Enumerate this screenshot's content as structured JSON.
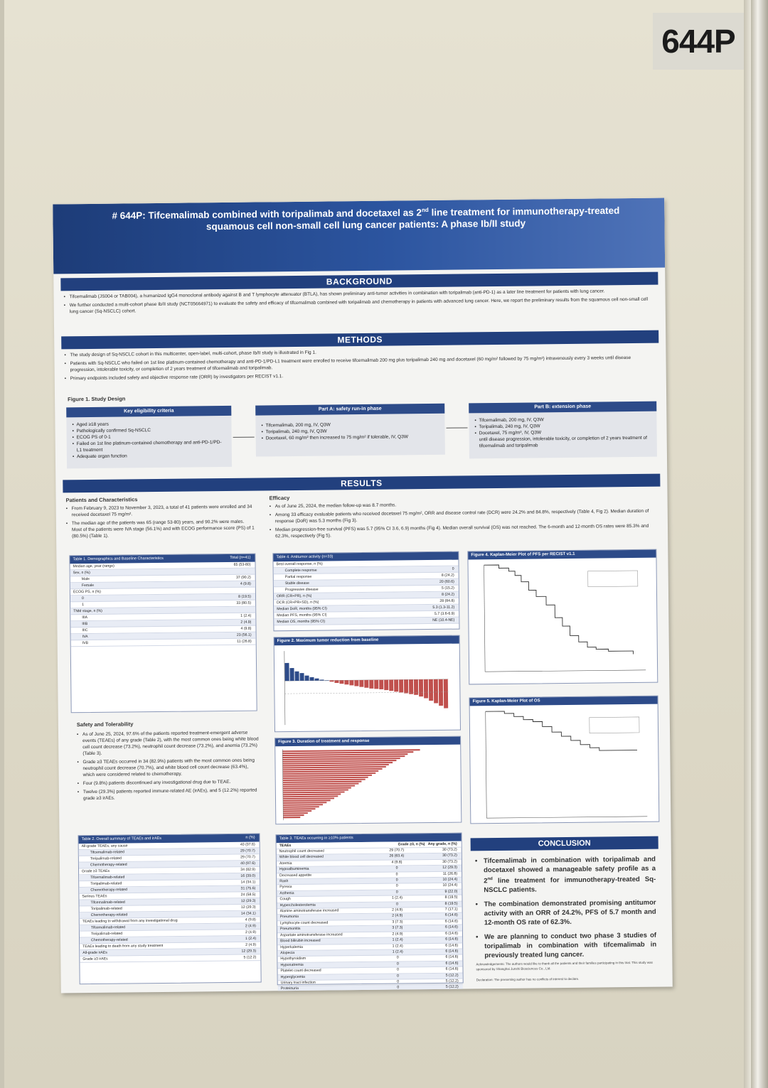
{
  "poster_number": "644P",
  "header": {
    "title_line1": "# 644P: Tifcemalimab combined with toripalimab and docetaxel as 2",
    "title_sup": "nd",
    "title_line1_tail": " line treatment for immunotherapy-treated",
    "title_line2": "squamous cell non-small cell lung cancer patients: A phase Ib/II study",
    "authors": "",
    "affiliations": ""
  },
  "background": {
    "heading": "BACKGROUND",
    "bullets": [
      "Tifcemalimab (JS004 or TAB004), a humanized IgG4 monoclonal antibody against B and T lymphocyte attenuator (BTLA), has shown preliminary anti-tumor activities in combination with toripalimab (anti-PD-1) as a later line treatment for patients with lung cancer.",
      "We further conducted a multi-cohort phase Ib/II study (NCT05664971) to evaluate the safety and efficacy of tifcemalimab combined with toripalimab and chemotherapy in patients with advanced lung cancer. Here, we report the preliminary results from the squamous cell non-small cell lung cancer (Sq-NSCLC) cohort."
    ]
  },
  "methods": {
    "heading": "METHODS",
    "bullets": [
      "The study design of Sq-NSCLC cohort in this multicenter, open-label, multi-cohort, phase Ib/II study is illustrated in Fig 1.",
      "Patients with Sq-NSCLC who failed on 1st line platinum-contained chemotherapy and anti-PD-1/PD-L1 treatment were enrolled to receive tifcemalimab 200 mg plus toripalimab 240 mg and docetaxel (60 mg/m² followed by 75 mg/m²) intravenously every 3 weeks until disease progression, intolerable toxicity, or completion of 2 years treatment of tifcemalimab and toripalimab.",
      "Primary endpoints included safety and objective response rate (ORR) by investigators per RECIST v1.1."
    ],
    "figure_caption": "Figure 1. Study Design",
    "design": {
      "box1_title": "Key eligibility criteria",
      "box1_items": [
        "Aged ≥18 years",
        "Pathologically confirmed Sq-NSCLC",
        "ECOG PS of 0-1",
        "Failed on 1st line platinum-contained chemotherapy and anti-PD-1/PD-L1 treatment",
        "Adequate organ function"
      ],
      "box2_title": "Part A: safety run-in phase",
      "box2_items": [
        "Tifcemalimab, 200 mg, IV, Q3W",
        "Toripalimab, 240 mg, IV, Q3W",
        "Docetaxel, 60 mg/m² then increased to 75 mg/m² if tolerable, IV, Q3W"
      ],
      "box3_title": "Part B: extension phase",
      "box3_items": [
        "Tifcemalimab, 200 mg, IV, Q3W",
        "Toripalimab, 240 mg, IV, Q3W",
        "Docetaxel, 75 mg/m², IV, Q3W"
      ],
      "box3_note": "until disease progression, intolerable toxicity, or completion of 2 years treatment of tifcemalimab and toripalimab"
    }
  },
  "results": {
    "heading": "RESULTS",
    "patients_heading": "Patients and Characteristics",
    "patients_bullets": [
      "From February 9, 2023 to November 3, 2023, a total of 41 patients were enrolled and 34 received docetaxel 75 mg/m².",
      "The median age of the patients was 65 (range 53-80) years, and 90.2% were males. Most of the patients were IVA stage (56.1%) and with ECOG performance score (PS) of 1 (80.5%) (Table 1)."
    ],
    "efficacy_heading": "Efficacy",
    "efficacy_bullets": [
      "As of June 25, 2024, the median follow-up was 8.7 months.",
      "Among 33 efficacy evaluable patients who received docetaxel 75 mg/m², ORR and disease control rate (DCR) were 24.2% and 84.8%, respectively (Table 4, Fig 2). Median duration of response (DoR) was 5.3 months (Fig 3).",
      "Median progression-free survival (PFS) was 5.7 (95% CI 3.6, 6.9) months (Fig 4). Median overall survival (OS) was not reached. The 6-month and 12-month OS rates were 85.3% and 62.3%, respectively (Fig 5)."
    ],
    "table1": {
      "title": "Table 1. Demographics and Baseline Characteristics",
      "col": "Total (n=41)",
      "rows": [
        {
          "label": "Median age, year (range)",
          "value": "65 (53-80)",
          "indent": false
        },
        {
          "label": "Sex, n (%)",
          "value": "",
          "indent": false
        },
        {
          "label": "Male",
          "value": "37 (90.2)",
          "indent": true
        },
        {
          "label": "Female",
          "value": "4 (9.8)",
          "indent": true
        },
        {
          "label": "ECOG PS, n (%)",
          "value": "",
          "indent": false
        },
        {
          "label": "0",
          "value": "8 (19.5)",
          "indent": true
        },
        {
          "label": "1",
          "value": "33 (80.5)",
          "indent": true
        },
        {
          "label": "TNM stage, n (%)",
          "value": "",
          "indent": false
        },
        {
          "label": "IIIA",
          "value": "1 (2.4)",
          "indent": true
        },
        {
          "label": "IIIB",
          "value": "2 (4.9)",
          "indent": true
        },
        {
          "label": "IIIC",
          "value": "4 (9.8)",
          "indent": true
        },
        {
          "label": "IVA",
          "value": "23 (56.1)",
          "indent": true
        },
        {
          "label": "IVB",
          "value": "11 (26.8)",
          "indent": true
        }
      ]
    },
    "table4": {
      "title": "Table 4. Antitumor activity (n=33)",
      "rows": [
        {
          "label": "Best overall response, n (%)",
          "value": "",
          "indent": false
        },
        {
          "label": "Complete response",
          "value": "0",
          "indent": true
        },
        {
          "label": "Partial response",
          "value": "8 (24.2)",
          "indent": true
        },
        {
          "label": "Stable disease",
          "value": "20 (60.6)",
          "indent": true
        },
        {
          "label": "Progressive disease",
          "value": "5 (15.2)",
          "indent": true
        },
        {
          "label": "ORR (CR+PR), n (%)",
          "value": "8 (24.2)",
          "indent": false
        },
        {
          "label": "DCR (CR+PR+SD), n (%)",
          "value": "28 (84.8)",
          "indent": false
        },
        {
          "label": "Median DoR, months (95% CI)",
          "value": "5.3 (1.3-11.2)",
          "indent": false
        },
        {
          "label": "Median PFS, months (95% CI)",
          "value": "5.7 (3.6-6.9)",
          "indent": false
        },
        {
          "label": "Median OS, months (95% CI)",
          "value": "NE (10.4-NE)",
          "indent": false
        }
      ]
    },
    "fig2_title": "Figure 2. Maximum tumor reduction from baseline",
    "fig3_title": "Figure 3. Duration of treatment and response",
    "fig4_title": "Figure 4. Kaplan-Meier Plot of PFS per RECIST v1.1",
    "fig5_title": "Figure 5. Kaplan-Meier Plot of OS",
    "safety_heading": "Safety and Tolerability",
    "safety_bullets": [
      "As of June 25, 2024, 97.6% of the patients reported treatment-emergent adverse events (TEAEs) of any grade (Table 2), with the most common ones being white blood cell count decrease (73.2%), neutrophil count decrease (73.2%), and anemia (73.2%) (Table 3).",
      "Grade ≥3 TEAEs occurred in 34 (82.9%) patients with the most common ones being neutrophil count decrease (70.7%), and white blood cell count decrease (63.4%), which were considered related to chemotherapy.",
      "Four (9.8%) patients discontinued any investigational drug due to TEAE.",
      "Twelve (29.3%) patients reported immune-related AE (irAEs), and 5 (12.2%) reported grade ≥3 irAEs."
    ],
    "table2": {
      "title": "Table 2. Overall summary of TEAEs and irAEs",
      "col": "n (%)",
      "rows": [
        {
          "label": "All-grade TEAEs, any cause",
          "value": "40 (97.6)",
          "indent": false
        },
        {
          "label": "Tifcemalimab-related",
          "value": "29 (70.7)",
          "indent": true
        },
        {
          "label": "Toripalimab-related",
          "value": "29 (70.7)",
          "indent": true
        },
        {
          "label": "Chemotherapy-related",
          "value": "40 (97.6)",
          "indent": true
        },
        {
          "label": "Grade ≥3 TEAEs",
          "value": "34 (82.9)",
          "indent": false
        },
        {
          "label": "Tifcemalimab-related",
          "value": "16 (39.0)",
          "indent": true
        },
        {
          "label": "Toripalimab-related",
          "value": "14 (34.1)",
          "indent": true
        },
        {
          "label": "Chemotherapy-related",
          "value": "31 (75.6)",
          "indent": true
        },
        {
          "label": "Serious TEAEs",
          "value": "24 (58.5)",
          "indent": false
        },
        {
          "label": "Tifcemalimab-related",
          "value": "12 (29.3)",
          "indent": true
        },
        {
          "label": "Toripalimab-related",
          "value": "12 (29.3)",
          "indent": true
        },
        {
          "label": "Chemotherapy-related",
          "value": "14 (34.1)",
          "indent": true
        },
        {
          "label": "TEAEs leading to withdrawal from any investigational drug",
          "value": "4 (9.8)",
          "indent": false
        },
        {
          "label": "Tifcemalimab-related",
          "value": "2 (4.9)",
          "indent": true
        },
        {
          "label": "Toripalimab-related",
          "value": "2 (4.9)",
          "indent": true
        },
        {
          "label": "Chemotherapy-related",
          "value": "1 (2.4)",
          "indent": true
        },
        {
          "label": "TEAEs leading to death from any study treatment",
          "value": "2 (4.9)",
          "indent": false
        },
        {
          "label": "All-grade irAEs",
          "value": "12 (29.3)",
          "indent": false
        },
        {
          "label": "Grade ≥3 irAEs",
          "value": "5 (12.2)",
          "indent": false
        }
      ]
    },
    "table3": {
      "title": "Table 3. TEAEs occurring in ≥10% patients",
      "col1": "Grade ≥3, n (%)",
      "col2": "Any grade, n (%)",
      "rows": [
        {
          "label": "Neutrophil count decreased",
          "g3": "29 (70.7)",
          "any": "30 (73.2)"
        },
        {
          "label": "White blood cell decreased",
          "g3": "26 (63.4)",
          "any": "30 (73.2)"
        },
        {
          "label": "Anemia",
          "g3": "4 (9.8)",
          "any": "30 (73.2)"
        },
        {
          "label": "Hypoalbuminemia",
          "g3": "0",
          "any": "12 (29.3)"
        },
        {
          "label": "Decreased appetite",
          "g3": "0",
          "any": "11 (26.8)"
        },
        {
          "label": "Rash",
          "g3": "0",
          "any": "10 (24.4)"
        },
        {
          "label": "Pyrexia",
          "g3": "0",
          "any": "10 (24.4)"
        },
        {
          "label": "Asthenia",
          "g3": "0",
          "any": "9 (22.0)"
        },
        {
          "label": "Cough",
          "g3": "1 (2.4)",
          "any": "8 (19.5)"
        },
        {
          "label": "Hypercholesterolemia",
          "g3": "0",
          "any": "8 (19.5)"
        },
        {
          "label": "Alanine aminotransferase increased",
          "g3": "2 (4.9)",
          "any": "7 (17.1)"
        },
        {
          "label": "Pneumonia",
          "g3": "2 (4.9)",
          "any": "6 (14.6)"
        },
        {
          "label": "Lymphocyte count decreased",
          "g3": "3 (7.3)",
          "any": "6 (14.6)"
        },
        {
          "label": "Pneumonitis",
          "g3": "3 (7.3)",
          "any": "6 (14.6)"
        },
        {
          "label": "Aspartate aminotransferase increased",
          "g3": "2 (4.9)",
          "any": "6 (14.6)"
        },
        {
          "label": "Blood bilirubin increased",
          "g3": "1 (2.4)",
          "any": "6 (14.6)"
        },
        {
          "label": "Hyperkalemia",
          "g3": "1 (2.4)",
          "any": "6 (14.6)"
        },
        {
          "label": "Alopecia",
          "g3": "1 (2.4)",
          "any": "6 (14.6)"
        },
        {
          "label": "Hypothyroidism",
          "g3": "0",
          "any": "6 (14.6)"
        },
        {
          "label": "Hyponatremia",
          "g3": "0",
          "any": "6 (14.6)"
        },
        {
          "label": "Platelet count decreased",
          "g3": "0",
          "any": "6 (14.6)"
        },
        {
          "label": "Hyperglycemia",
          "g3": "0",
          "any": "5 (12.2)"
        },
        {
          "label": "Urinary tract infection",
          "g3": "0",
          "any": "5 (12.2)"
        },
        {
          "label": "Proteinuria",
          "g3": "0",
          "any": "5 (12.2)"
        }
      ]
    }
  },
  "conclusion": {
    "heading": "CONCLUSION",
    "b1_pre": "Tifcemalimab in combination with toripalimab and docetaxel showed a manageable safety profile as a 2",
    "b1_sup": "nd",
    "b1_post": " line treatment for immunotherapy-treated Sq-NSCLC patients.",
    "b2": "The combination demonstrated promising antitumor activity with an ORR of 24.2%, PFS of 5.7 month and 12-month OS rate of 62.3%.",
    "b3": "We are planning to conduct two phase 3 studies of toripalimab in combination with tifcemalimab in previously treated lung cancer."
  },
  "acknowledgements": "Acknowledgements: The authors would like to thank all the patients and their families participating in this trial. This study was sponsored by Shanghai Junshi Biosciences Co., Ltd.",
  "declaration": "Declaration: The presenting author has no conflicts of interest to declare.",
  "colors": {
    "header": "#2c55a0",
    "section": "#22407e",
    "waterfall_red": "#c0504d",
    "waterfall_blue": "#2d4b89"
  },
  "waterfall_values": [
    42,
    30,
    22,
    18,
    12,
    8,
    5,
    2,
    0,
    -3,
    -6,
    -8,
    -10,
    -12,
    -14,
    -16,
    -18,
    -20,
    -21,
    -22,
    -24,
    -26,
    -28,
    -30,
    -32,
    -34,
    -36,
    -40,
    -44,
    -50,
    -56,
    -62,
    -68
  ],
  "swimmer_durations": [
    14.5,
    13.8,
    13.2,
    12.9,
    12.4,
    12.0,
    11.6,
    11.2,
    10.9,
    10.5,
    10.1,
    9.8,
    9.4,
    9.0,
    8.7,
    8.3,
    8.0,
    7.6,
    7.2,
    6.9,
    6.5,
    6.1,
    5.8,
    5.4,
    5.0,
    4.6,
    4.2,
    3.8,
    3.4,
    3.0,
    2.6,
    2.2,
    1.8
  ],
  "pfs_curve": [
    [
      0,
      1.0
    ],
    [
      1.2,
      0.97
    ],
    [
      2.0,
      0.94
    ],
    [
      2.5,
      0.9
    ],
    [
      3.0,
      0.84
    ],
    [
      3.6,
      0.76
    ],
    [
      4.2,
      0.7
    ],
    [
      5.0,
      0.62
    ],
    [
      5.7,
      0.5
    ],
    [
      6.3,
      0.42
    ],
    [
      6.9,
      0.33
    ],
    [
      7.6,
      0.27
    ],
    [
      8.3,
      0.22
    ],
    [
      9.0,
      0.2
    ],
    [
      10.0,
      0.18
    ],
    [
      11.0,
      0.18
    ],
    [
      12.0,
      0.15
    ]
  ],
  "os_curve": [
    [
      0,
      1.0
    ],
    [
      2.0,
      0.98
    ],
    [
      3.0,
      0.95
    ],
    [
      4.0,
      0.92
    ],
    [
      5.0,
      0.9
    ],
    [
      6.0,
      0.853
    ],
    [
      7.0,
      0.8
    ],
    [
      8.0,
      0.76
    ],
    [
      9.0,
      0.72
    ],
    [
      10.0,
      0.68
    ],
    [
      11.0,
      0.65
    ],
    [
      12.0,
      0.623
    ],
    [
      14.0,
      0.623
    ],
    [
      16.0,
      0.623
    ]
  ]
}
